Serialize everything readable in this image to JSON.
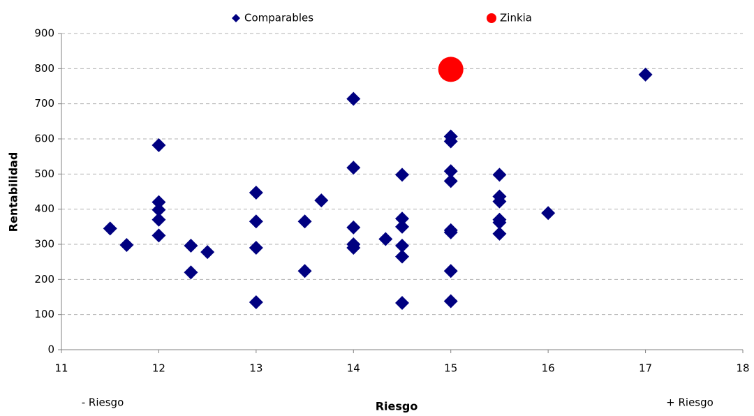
{
  "chart_data": {
    "type": "scatter",
    "x_label": "Riesgo",
    "y_label": "Rentabilidad",
    "annotations": [
      "- Riesgo",
      "+ Riesgo"
    ],
    "legend": "top",
    "grid": true,
    "xlim": [
      11,
      18
    ],
    "xticks": [
      11,
      12,
      13,
      14,
      15,
      16,
      17,
      18
    ],
    "ylim": [
      0,
      900
    ],
    "yticks": [
      0,
      100,
      200,
      300,
      400,
      500,
      600,
      700,
      800,
      900
    ],
    "series": [
      {
        "name": "Comparables",
        "color": "#000080",
        "marker": "diamond",
        "x": [
          11.5,
          11.67,
          12,
          12,
          12,
          12,
          12,
          12.33,
          12.33,
          12.5,
          13,
          13,
          13,
          13,
          13.5,
          13.5,
          13.67,
          14,
          14,
          14,
          14,
          14,
          14.33,
          14.5,
          14.5,
          14.5,
          14.5,
          14.5,
          14.5,
          15,
          15,
          15,
          15,
          15,
          15,
          15,
          15,
          15.5,
          15.5,
          15.5,
          15.5,
          15.5,
          15.5,
          16,
          17
        ],
        "values": [
          345,
          298,
          582,
          420,
          398,
          370,
          325,
          296,
          220,
          278,
          447,
          365,
          290,
          135,
          365,
          224,
          425,
          714,
          518,
          348,
          300,
          290,
          315,
          498,
          373,
          350,
          296,
          265,
          133,
          607,
          593,
          508,
          480,
          340,
          334,
          224,
          138,
          498,
          436,
          422,
          370,
          362,
          330,
          389,
          783
        ]
      },
      {
        "name": "Zinkia",
        "color": "#ff0000",
        "marker": "circle",
        "x": [
          15
        ],
        "values": [
          798
        ]
      }
    ]
  }
}
